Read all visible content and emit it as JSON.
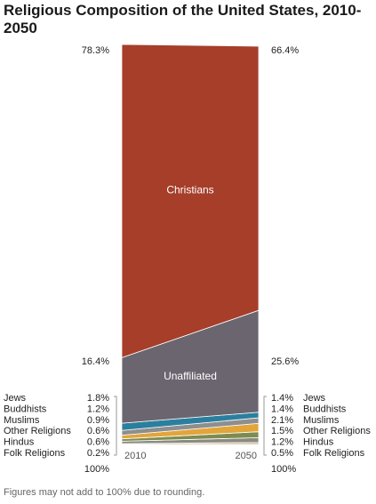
{
  "chart_data": {
    "type": "area",
    "title": "Religious Composition of the United States, 2010-2050",
    "x": [
      "2010",
      "2050"
    ],
    "series": [
      {
        "name": "Folk Religions",
        "values": [
          0.2,
          0.5
        ],
        "value_labels": [
          "0.2%",
          "0.5%"
        ],
        "color": "#c9b58a"
      },
      {
        "name": "Hindus",
        "values": [
          0.6,
          1.2
        ],
        "value_labels": [
          "0.6%",
          "1.2%"
        ],
        "color": "#8a8a82"
      },
      {
        "name": "Other Religions",
        "values": [
          0.6,
          1.5
        ],
        "value_labels": [
          "0.6%",
          "1.5%"
        ],
        "color": "#7d8c4e"
      },
      {
        "name": "Muslims",
        "values": [
          0.9,
          2.1
        ],
        "value_labels": [
          "0.9%",
          "2.1%"
        ],
        "color": "#e1a53a"
      },
      {
        "name": "Buddhists",
        "values": [
          1.2,
          1.4
        ],
        "value_labels": [
          "1.2%",
          "1.4%"
        ],
        "color": "#8e8e8e"
      },
      {
        "name": "Jews",
        "values": [
          1.8,
          1.4
        ],
        "value_labels": [
          "1.8%",
          "1.4%"
        ],
        "color": "#2b7f9e"
      },
      {
        "name": "Unaffiliated",
        "values": [
          16.4,
          25.6
        ],
        "value_labels": [
          "16.4%",
          "25.6%"
        ],
        "color": "#6b6570"
      },
      {
        "name": "Christians",
        "values": [
          78.3,
          66.4
        ],
        "value_labels": [
          "78.3%",
          "66.4%"
        ],
        "color": "#a63e2a"
      }
    ],
    "totals": [
      "100%",
      "100%"
    ],
    "ylim": [
      0,
      100
    ],
    "footnote": "Figures may not add to 100% due to rounding."
  }
}
